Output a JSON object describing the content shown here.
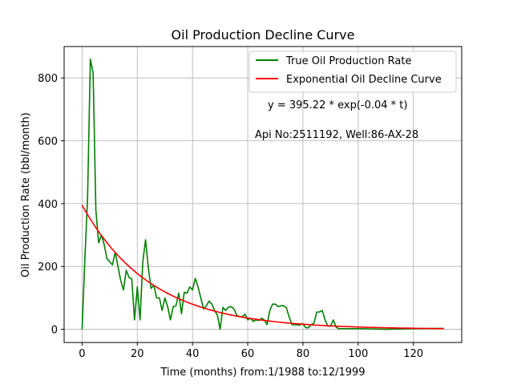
{
  "chart_data": {
    "type": "line",
    "title": "Oil Production Decline Curve",
    "xlabel": "Time (months) from:1/1988 to:12/1999",
    "ylabel": "Oil Production Rate (bbl/month)",
    "xlim": [
      -6.5,
      137.5
    ],
    "ylim": [
      -42,
      900
    ],
    "xticks": [
      0,
      20,
      40,
      60,
      80,
      100,
      120
    ],
    "yticks": [
      0,
      200,
      400,
      600,
      800
    ],
    "grid": true,
    "legend_position": "top-right",
    "annotations": [
      "y = 395.22 * exp(-0.04 * t)",
      "Api No:2511192, Well:86-AX-28"
    ],
    "fit": {
      "a": 395.22,
      "b": -0.04,
      "t_range": [
        0,
        131
      ]
    },
    "series": [
      {
        "name": "True Oil Production Rate",
        "color": "#008000",
        "x": [
          0,
          1,
          2,
          3,
          4,
          5,
          6,
          7,
          8,
          9,
          10,
          11,
          12,
          13,
          14,
          15,
          16,
          17,
          18,
          19,
          20,
          21,
          22,
          23,
          24,
          25,
          26,
          27,
          28,
          29,
          30,
          31,
          32,
          33,
          34,
          35,
          36,
          37,
          38,
          39,
          40,
          41,
          42,
          43,
          44,
          45,
          46,
          47,
          48,
          49,
          50,
          51,
          52,
          53,
          54,
          55,
          56,
          57,
          58,
          59,
          60,
          61,
          62,
          63,
          64,
          65,
          66,
          67,
          68,
          69,
          70,
          71,
          72,
          73,
          74,
          75,
          76,
          77,
          78,
          79,
          80,
          81,
          82,
          83,
          84,
          85,
          86,
          87,
          88,
          89,
          90,
          91,
          92,
          93,
          94,
          95,
          96,
          100,
          110,
          120,
          131
        ],
        "values": [
          0,
          220,
          420,
          860,
          815,
          380,
          275,
          300,
          270,
          225,
          215,
          205,
          245,
          200,
          155,
          125,
          188,
          165,
          160,
          30,
          135,
          30,
          215,
          285,
          195,
          130,
          140,
          100,
          100,
          60,
          100,
          72,
          30,
          72,
          75,
          115,
          50,
          118,
          115,
          135,
          125,
          162,
          135,
          100,
          65,
          75,
          90,
          80,
          60,
          45,
          0,
          70,
          60,
          70,
          72,
          65,
          45,
          40,
          40,
          48,
          30,
          35,
          25,
          30,
          28,
          35,
          30,
          15,
          60,
          80,
          80,
          72,
          75,
          75,
          68,
          40,
          15,
          15,
          14,
          14,
          18,
          5,
          5,
          15,
          20,
          55,
          55,
          60,
          30,
          10,
          10,
          30,
          7,
          2,
          2,
          2,
          2,
          2,
          0,
          2,
          3
        ]
      },
      {
        "name": "Exponential Oil Decline Curve",
        "color": "#ff0000",
        "x": [],
        "values": []
      }
    ]
  }
}
